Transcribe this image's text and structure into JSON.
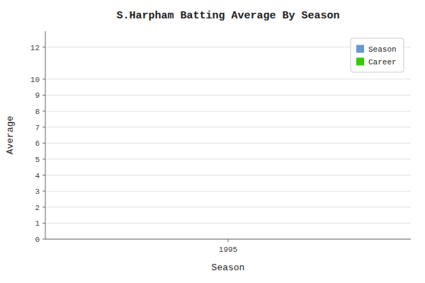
{
  "chart_data": {
    "type": "line",
    "title": "S.Harpham Batting Average By Season",
    "x_label": "Season",
    "y_label": "Average",
    "x": [],
    "series": [
      {
        "name": "Season",
        "color": "#6699cc",
        "values": []
      },
      {
        "name": "Career",
        "color": "#33cc00",
        "values": []
      }
    ],
    "xlim": [
      1994.5,
      1995.5
    ],
    "xticks": [
      1995
    ],
    "ylim": [
      0,
      13
    ],
    "yticks": [
      0,
      1,
      2,
      3,
      4,
      5,
      6,
      7,
      8,
      9,
      10,
      12
    ],
    "grid": true,
    "legend": "upper right"
  }
}
